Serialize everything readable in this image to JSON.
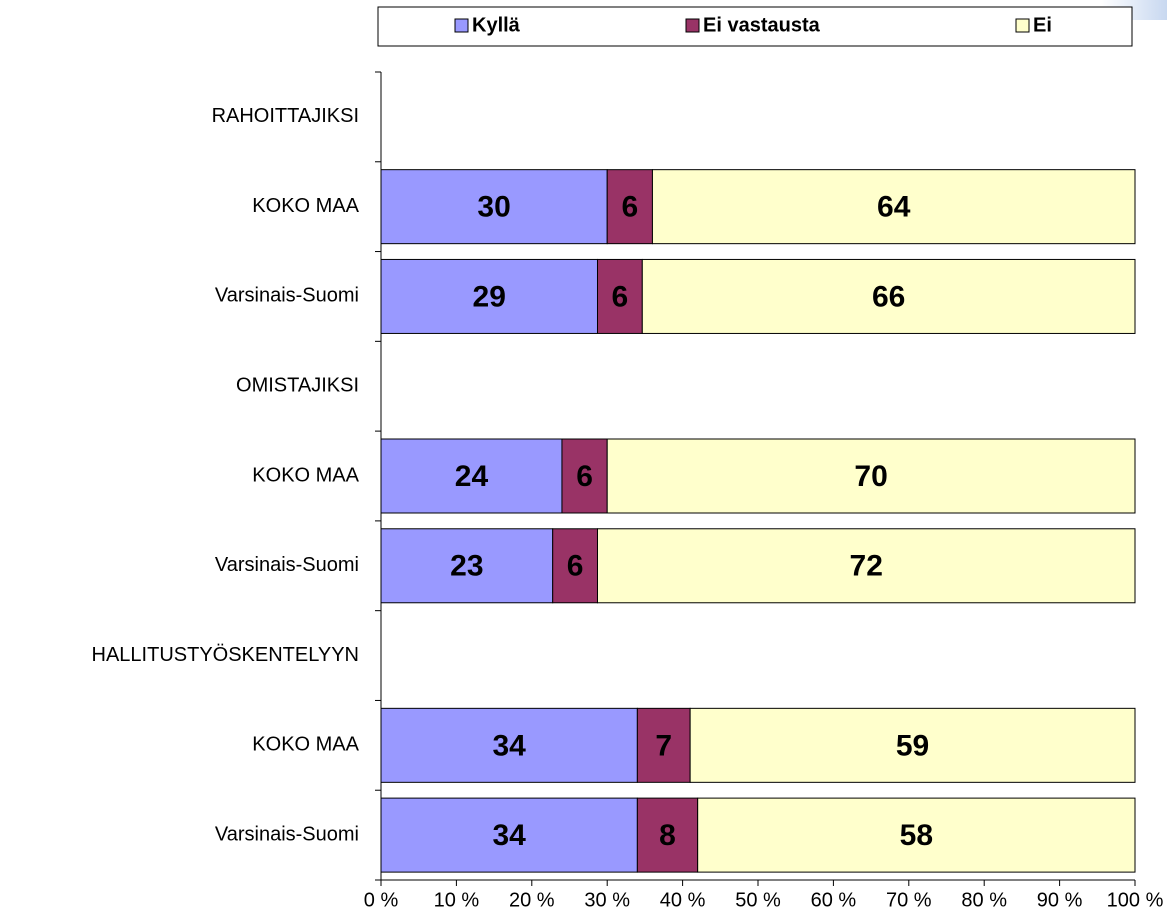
{
  "chart_data": {
    "type": "stacked_percent_barh",
    "categories": [
      "RAHOITTAJIKSI",
      "KOKO MAA",
      "Varsinais-Suomi",
      "OMISTAJIKSI",
      "KOKO MAA",
      "Varsinais-Suomi",
      "HALLITUSTYÖSKENTELYYN",
      "KOKO MAA",
      "Varsinais-Suomi"
    ],
    "series": [
      {
        "name": "Kyllä",
        "color": "#9999ff",
        "values": [
          null,
          30,
          29,
          null,
          24,
          23,
          null,
          34,
          34
        ]
      },
      {
        "name": "Ei vastausta",
        "color": "#993366",
        "values": [
          null,
          6,
          6,
          null,
          6,
          6,
          null,
          7,
          8
        ]
      },
      {
        "name": "Ei",
        "color": "#ffffcc",
        "values": [
          null,
          64,
          66,
          null,
          70,
          72,
          null,
          59,
          58
        ]
      }
    ],
    "xlim": [
      0,
      100
    ],
    "xticks": [
      {
        "value": 0,
        "label": "0 %"
      },
      {
        "value": 10,
        "label": "10 %"
      },
      {
        "value": 20,
        "label": "20 %"
      },
      {
        "value": 30,
        "label": "30 %"
      },
      {
        "value": 40,
        "label": "40 %"
      },
      {
        "value": 50,
        "label": "50 %"
      },
      {
        "value": 60,
        "label": "60 %"
      },
      {
        "value": 70,
        "label": "70 %"
      },
      {
        "value": 80,
        "label": "80 %"
      },
      {
        "value": 90,
        "label": "90 %"
      },
      {
        "value": 100,
        "label": "100 %"
      }
    ],
    "legend": "top"
  }
}
